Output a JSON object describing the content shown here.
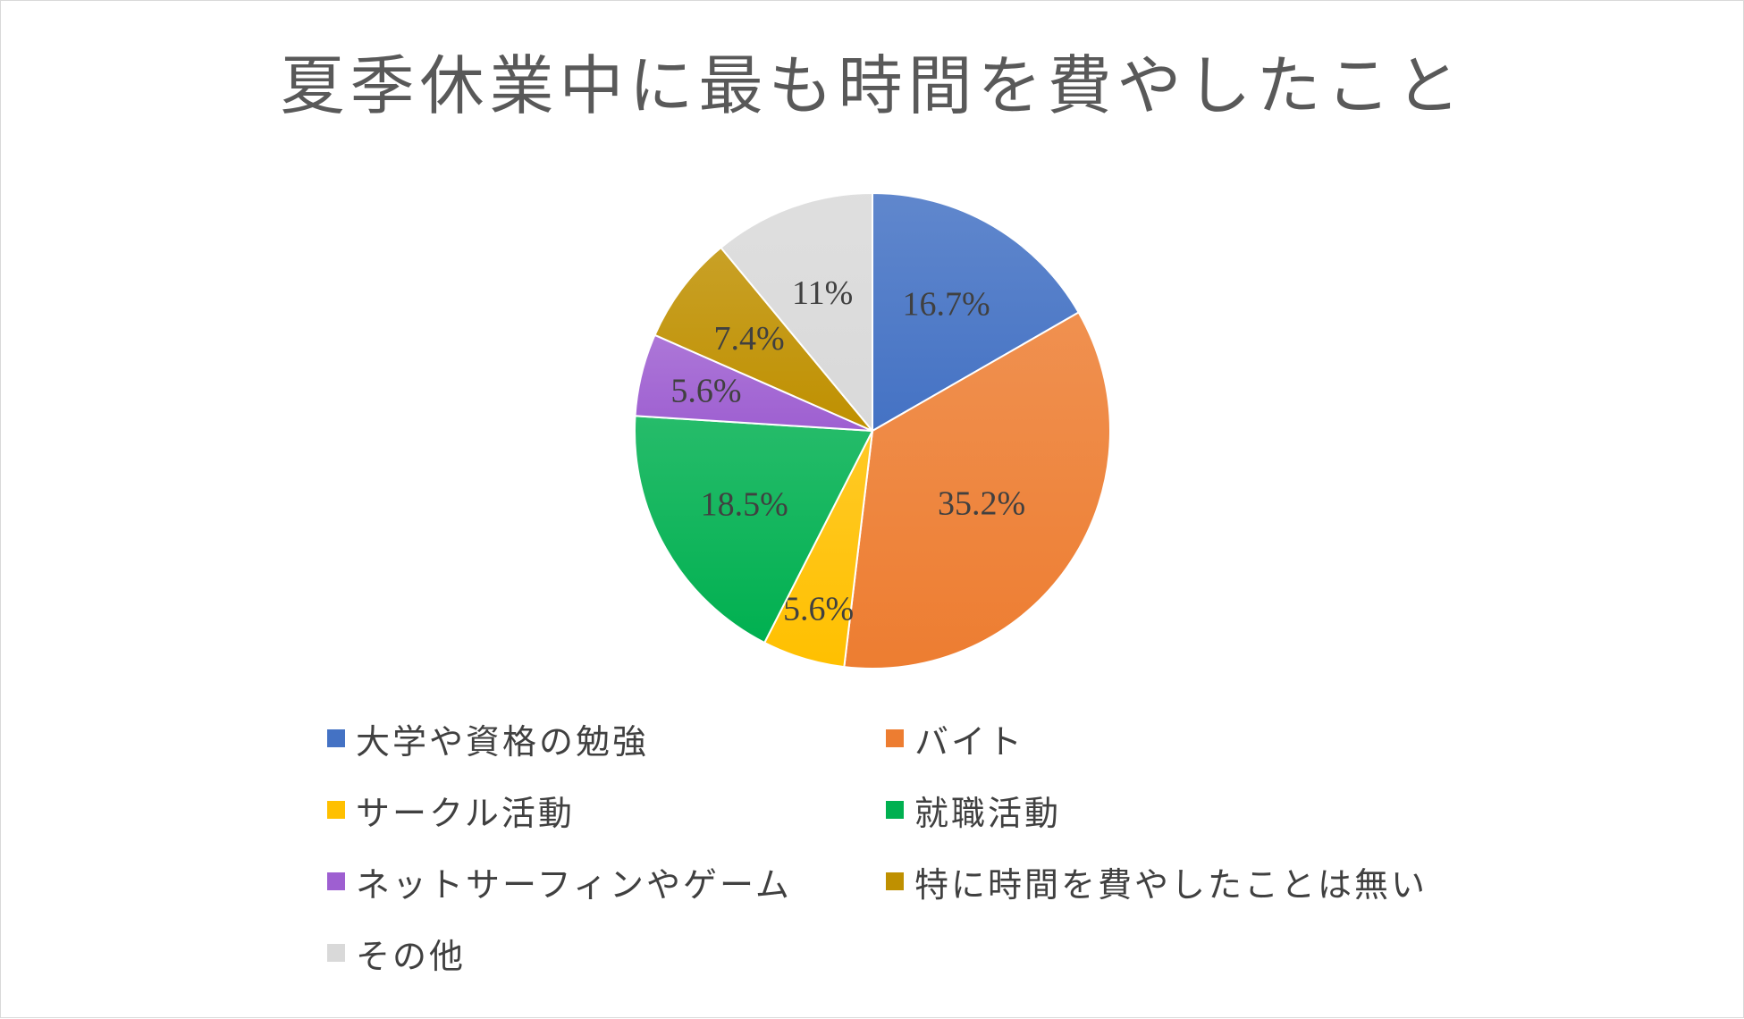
{
  "chart_data": {
    "type": "pie",
    "title": "夏季休業中に最も時間を費やしたこと",
    "categories": [
      "大学や資格の勉強",
      "バイト",
      "サークル活動",
      "就職活動",
      "ネットサーフィンやゲーム",
      "特に時間を費やしたことは無い",
      "その他"
    ],
    "values": [
      16.7,
      35.2,
      5.6,
      18.5,
      5.6,
      7.4,
      11
    ],
    "labels": [
      "16.7%",
      "35.2%",
      "5.6%",
      "18.5%",
      "5.6%",
      "7.4%",
      "11%"
    ],
    "colors": [
      "#4472c4",
      "#ed7d31",
      "#ffc000",
      "#00b050",
      "#9e5fd1",
      "#bf9000",
      "#d9d9d9"
    ],
    "legend_position": "bottom"
  }
}
